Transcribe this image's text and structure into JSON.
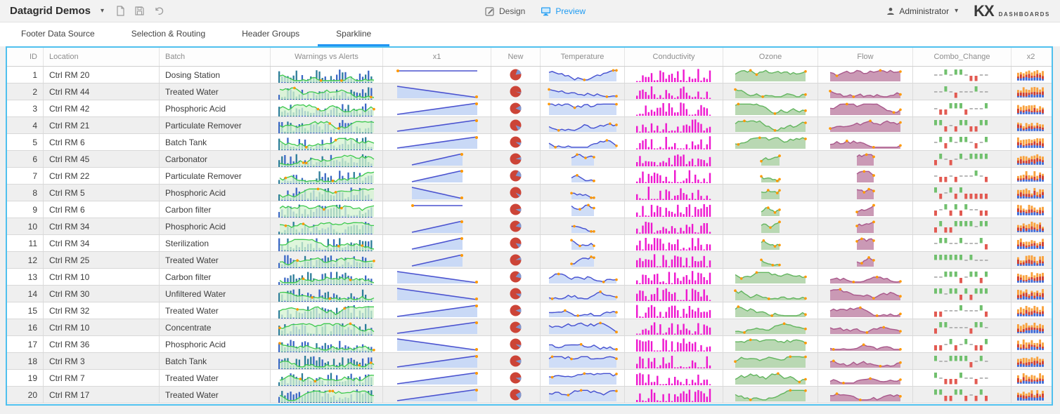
{
  "app": {
    "title": "Datagrid Demos",
    "design_label": "Design",
    "preview_label": "Preview",
    "user": "Administrator",
    "logo_primary": "KX",
    "logo_secondary": "DASHBOARDS"
  },
  "tabs": [
    {
      "label": "Footer Data Source",
      "active": false
    },
    {
      "label": "Selection & Routing",
      "active": false
    },
    {
      "label": "Header Groups",
      "active": false
    },
    {
      "label": "Sparkline",
      "active": true
    }
  ],
  "grid": {
    "columns": [
      {
        "key": "id",
        "label": "ID",
        "align": "right"
      },
      {
        "key": "location",
        "label": "Location",
        "align": "left"
      },
      {
        "key": "batch",
        "label": "Batch",
        "align": "left"
      },
      {
        "key": "warnings",
        "label": "Warnings vs Alerts",
        "align": "center",
        "chart": "barline"
      },
      {
        "key": "x1",
        "label": "x1",
        "align": "center",
        "chart": "wedge"
      },
      {
        "key": "new",
        "label": "New",
        "align": "center",
        "chart": "pie"
      },
      {
        "key": "temperature",
        "label": "Temperature",
        "align": "center",
        "chart": "linearea"
      },
      {
        "key": "conductivity",
        "label": "Conductivity",
        "align": "center",
        "chart": "bars"
      },
      {
        "key": "ozone",
        "label": "Ozone",
        "align": "center",
        "chart": "area_green"
      },
      {
        "key": "flow",
        "label": "Flow",
        "align": "center",
        "chart": "area_mauve"
      },
      {
        "key": "combo_change",
        "label": "Combo_Change",
        "align": "center",
        "chart": "winloss"
      },
      {
        "key": "x2",
        "label": "x2",
        "align": "center",
        "chart": "stacked"
      }
    ],
    "rows": [
      {
        "id": 1,
        "location": "Ctrl RM 20",
        "batch": "Dosing Station",
        "narrow": false,
        "x1_trend": "flat",
        "pie": {
          "frac": 0.17,
          "rot": 20
        },
        "seed": 1
      },
      {
        "id": 2,
        "location": "Ctrl RM 44",
        "batch": "Treated Water",
        "narrow": false,
        "x1_trend": "down",
        "pie": {
          "frac": 0.03,
          "rot": 100
        },
        "seed": 2
      },
      {
        "id": 3,
        "location": "Ctrl RM 42",
        "batch": "Phosphoric Acid",
        "narrow": false,
        "x1_trend": "up",
        "pie": {
          "frac": 0.15,
          "rot": 60
        },
        "seed": 3
      },
      {
        "id": 4,
        "location": "Ctrl RM 21",
        "batch": "Particulate Remover",
        "narrow": false,
        "x1_trend": "up",
        "pie": {
          "frac": 0.12,
          "rot": 110
        },
        "seed": 4
      },
      {
        "id": 5,
        "location": "Ctrl RM 6",
        "batch": "Batch Tank",
        "narrow": false,
        "x1_trend": "up",
        "pie": {
          "frac": 0.09,
          "rot": 95
        },
        "seed": 5
      },
      {
        "id": 6,
        "location": "Ctrl RM 45",
        "batch": "Carbonator",
        "narrow": true,
        "x1_trend": "up",
        "pie": {
          "frac": 0.08,
          "rot": 70
        },
        "seed": 6
      },
      {
        "id": 7,
        "location": "Ctrl RM 22",
        "batch": "Particulate Remover",
        "narrow": true,
        "x1_trend": "up",
        "pie": {
          "frac": 0.2,
          "rot": 30
        },
        "seed": 7
      },
      {
        "id": 8,
        "location": "Ctrl RM 5",
        "batch": "Phosphoric Acid",
        "narrow": true,
        "x1_trend": "down",
        "pie": {
          "frac": 0.07,
          "rot": 115
        },
        "seed": 8
      },
      {
        "id": 9,
        "location": "Ctrl RM 6",
        "batch": "Carbon filter",
        "narrow": true,
        "x1_trend": "flat",
        "pie": {
          "frac": 0.1,
          "rot": 80
        },
        "seed": 9
      },
      {
        "id": 10,
        "location": "Ctrl RM 34",
        "batch": "Phosphoric Acid",
        "narrow": true,
        "x1_trend": "up",
        "pie": {
          "frac": 0.15,
          "rot": 50
        },
        "seed": 10
      },
      {
        "id": 11,
        "location": "Ctrl RM 34",
        "batch": "Sterilization",
        "narrow": true,
        "x1_trend": "up",
        "pie": {
          "frac": 0.12,
          "rot": 100
        },
        "seed": 11
      },
      {
        "id": 12,
        "location": "Ctrl RM 25",
        "batch": "Treated Water",
        "narrow": true,
        "x1_trend": "up",
        "pie": {
          "frac": 0.08,
          "rot": 60
        },
        "seed": 12
      },
      {
        "id": 13,
        "location": "Ctrl RM 10",
        "batch": "Carbon filter",
        "narrow": false,
        "x1_trend": "down",
        "pie": {
          "frac": 0.18,
          "rot": 40
        },
        "seed": 13
      },
      {
        "id": 14,
        "location": "Ctrl RM 30",
        "batch": "Unfiltered Water",
        "narrow": false,
        "x1_trend": "down",
        "pie": {
          "frac": 0.1,
          "rot": 90
        },
        "seed": 14
      },
      {
        "id": 15,
        "location": "Ctrl RM 32",
        "batch": "Treated Water",
        "narrow": false,
        "x1_trend": "up",
        "pie": {
          "frac": 0.12,
          "rot": 70
        },
        "seed": 15
      },
      {
        "id": 16,
        "location": "Ctrl RM 10",
        "batch": "Concentrate",
        "narrow": false,
        "x1_trend": "up",
        "pie": {
          "frac": 0.15,
          "rot": 55
        },
        "seed": 16
      },
      {
        "id": 17,
        "location": "Ctrl RM 36",
        "batch": "Phosphoric Acid",
        "narrow": false,
        "x1_trend": "down",
        "pie": {
          "frac": 0.08,
          "rot": 100
        },
        "seed": 17
      },
      {
        "id": 18,
        "location": "Ctrl RM 3",
        "batch": "Batch Tank",
        "narrow": false,
        "x1_trend": "up",
        "pie": {
          "frac": 0.12,
          "rot": 75
        },
        "seed": 18
      },
      {
        "id": 19,
        "location": "Ctrl RM 7",
        "batch": "Treated Water",
        "narrow": false,
        "x1_trend": "up",
        "pie": {
          "frac": 0.1,
          "rot": 85
        },
        "seed": 19
      },
      {
        "id": 20,
        "location": "Ctrl RM 17",
        "batch": "Treated Water",
        "narrow": false,
        "x1_trend": "up",
        "pie": {
          "frac": 0.22,
          "rot": 60
        },
        "seed": 20
      }
    ]
  },
  "colors": {
    "accent_blue": "#2196f3",
    "panel_border": "#4fc0ee",
    "warn_bar_a": "#3b67c5",
    "warn_bar_b": "#2d7d9a",
    "warn_line": "#3ec94e",
    "warn_fill": "#d4f3d0",
    "x1_line": "#4a52cf",
    "x1_fill": "#c9d9f6",
    "marker_orange": "#ff9800",
    "pie_red": "#cc4437",
    "pie_slice": "#8097cf",
    "temp_line": "#444fd0",
    "temp_fill": "#ccdbf7",
    "cond_bar": "#ee17cf",
    "ozone_fill": "#b5d6af",
    "ozone_line": "#62b55e",
    "flow_fill": "#c794b1",
    "flow_line": "#a9588b",
    "win_green": "#71c06e",
    "win_red": "#e25a52",
    "win_zero": "#b0b0b0",
    "stack_blue": "#3a68d8",
    "stack_red": "#cf3a2c",
    "stack_orange": "#f9a13a"
  }
}
